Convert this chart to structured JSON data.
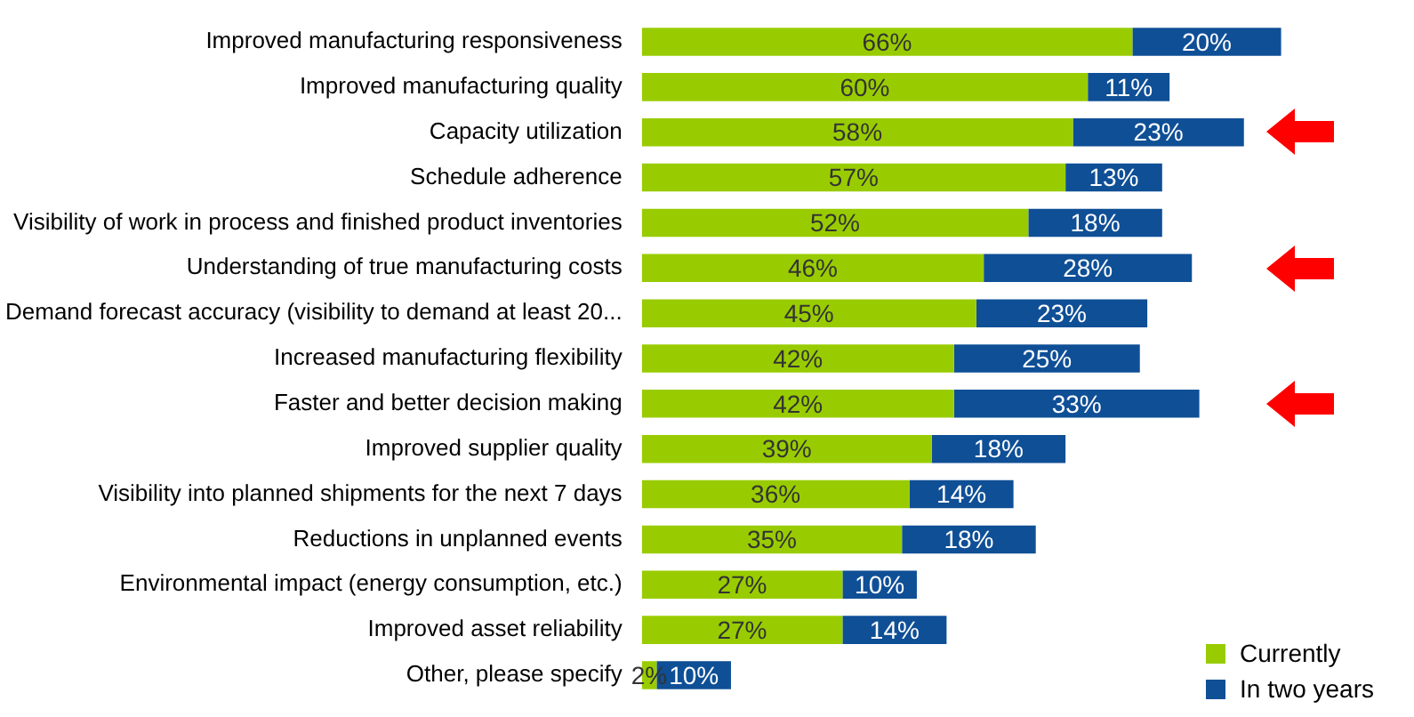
{
  "chart_data": {
    "type": "bar",
    "orientation": "horizontal",
    "stacked": true,
    "legend": "bottom right",
    "data_labels": true,
    "tick_labels": "y",
    "categories": [
      "Improved manufacturing responsiveness",
      "Improved manufacturing quality",
      "Capacity utilization",
      "Schedule adherence",
      "Visibility of work in process and finished product inventories",
      "Understanding of true manufacturing costs",
      "Demand forecast accuracy (visibility to demand at least 20...",
      "Increased manufacturing flexibility",
      "Faster and better decision making",
      "Improved supplier quality",
      "Visibility into planned shipments for the next 7 days",
      "Reductions in unplanned events",
      "Environmental impact (energy consumption, etc.)",
      "Improved asset reliability",
      "Other, please specify"
    ],
    "series": [
      {
        "name": "Currently",
        "color": "#99cc00",
        "values": [
          66,
          60,
          58,
          57,
          52,
          46,
          45,
          42,
          42,
          39,
          36,
          35,
          27,
          27,
          2
        ],
        "value_labels": [
          "66%",
          "60%",
          "58%",
          "57%",
          "52%",
          "46%",
          "45%",
          "42%",
          "42%",
          "39%",
          "36%",
          "35%",
          "27%",
          "27%",
          "2%"
        ]
      },
      {
        "name": "In two years",
        "color": "#0f4f96",
        "values": [
          20,
          11,
          23,
          13,
          18,
          28,
          23,
          25,
          33,
          18,
          14,
          18,
          10,
          14,
          10
        ],
        "value_labels": [
          "20%",
          "11%",
          "23%",
          "13%",
          "18%",
          "28%",
          "23%",
          "25%",
          "33%",
          "18%",
          "14%",
          "18%",
          "10%",
          "14%",
          "10%"
        ]
      }
    ]
  }
}
